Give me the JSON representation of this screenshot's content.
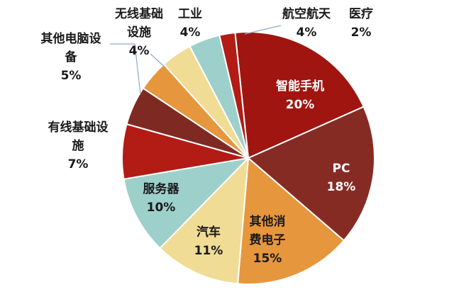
{
  "chart_data": {
    "type": "pie",
    "start_category": "智能手机",
    "direction": "clockwise",
    "slices": [
      {
        "label_lines": [
          "智能手机"
        ],
        "pct_text": "20%",
        "value": 20,
        "color": "#a0150f",
        "label_color": "#ffffff"
      },
      {
        "label_lines": [
          "PC"
        ],
        "pct_text": "18%",
        "value": 18,
        "color": "#862b24",
        "label_color": "#ffffff"
      },
      {
        "label_lines": [
          "其他消",
          "费电子"
        ],
        "pct_text": "15%",
        "value": 15,
        "color": "#e6963c",
        "label_color": "#1a1a1a"
      },
      {
        "label_lines": [
          "汽车"
        ],
        "pct_text": "11%",
        "value": 11,
        "color": "#f1dc96",
        "label_color": "#1a1a1a"
      },
      {
        "label_lines": [
          "服务器"
        ],
        "pct_text": "10%",
        "value": 10,
        "color": "#9dd0cb",
        "label_color": "#1a1a1a"
      },
      {
        "label_lines": [
          "有线基础设",
          "施"
        ],
        "pct_text": "7%",
        "value": 7,
        "color": "#b31b15",
        "label_color": "#1a1a1a"
      },
      {
        "label_lines": [
          "其他电脑设",
          "备"
        ],
        "pct_text": "5%",
        "value": 5,
        "color": "#7e2a22",
        "label_color": "#1a1a1a"
      },
      {
        "label_lines": [
          "无线基础",
          "设施"
        ],
        "pct_text": "4%",
        "value": 4,
        "color": "#e6963c",
        "label_color": "#1a1a1a"
      },
      {
        "label_lines": [
          "工业"
        ],
        "pct_text": "4%",
        "value": 4,
        "color": "#f1dc96",
        "label_color": "#1a1a1a"
      },
      {
        "label_lines": [
          "航空航天"
        ],
        "pct_text": "4%",
        "value": 4,
        "color": "#9dd0cb",
        "label_color": "#1a1a1a"
      },
      {
        "label_lines": [
          "医疗"
        ],
        "pct_text": "2%",
        "value": 2,
        "color": "#b31b15",
        "label_color": "#1a1a1a"
      }
    ]
  }
}
